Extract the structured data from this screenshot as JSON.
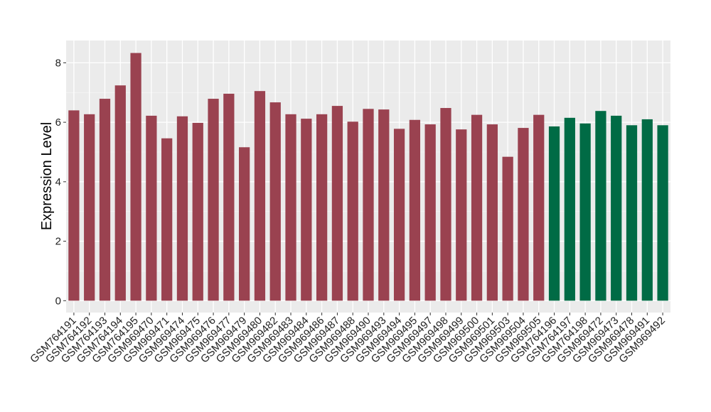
{
  "chart_data": {
    "type": "bar",
    "title": "",
    "xlabel": "",
    "ylabel": "Expression Level",
    "ylim": [
      0,
      8.75
    ],
    "yticks": [
      0,
      2,
      4,
      6,
      8
    ],
    "grid": true,
    "legend": "none",
    "group_colors": {
      "group1": "#9a4250",
      "group2": "#006b45"
    },
    "bars": [
      {
        "label": "GSM764191",
        "value": 6.4,
        "group": "group1"
      },
      {
        "label": "GSM764192",
        "value": 6.27,
        "group": "group1"
      },
      {
        "label": "GSM764193",
        "value": 6.79,
        "group": "group1"
      },
      {
        "label": "GSM764194",
        "value": 7.24,
        "group": "group1"
      },
      {
        "label": "GSM764195",
        "value": 8.33,
        "group": "group1"
      },
      {
        "label": "GSM969470",
        "value": 6.22,
        "group": "group1"
      },
      {
        "label": "GSM969471",
        "value": 5.46,
        "group": "group1"
      },
      {
        "label": "GSM969474",
        "value": 6.2,
        "group": "group1"
      },
      {
        "label": "GSM969475",
        "value": 5.98,
        "group": "group1"
      },
      {
        "label": "GSM969476",
        "value": 6.79,
        "group": "group1"
      },
      {
        "label": "GSM969477",
        "value": 6.96,
        "group": "group1"
      },
      {
        "label": "GSM969479",
        "value": 5.16,
        "group": "group1"
      },
      {
        "label": "GSM969480",
        "value": 7.05,
        "group": "group1"
      },
      {
        "label": "GSM969482",
        "value": 6.67,
        "group": "group1"
      },
      {
        "label": "GSM969483",
        "value": 6.27,
        "group": "group1"
      },
      {
        "label": "GSM969484",
        "value": 6.12,
        "group": "group1"
      },
      {
        "label": "GSM969486",
        "value": 6.27,
        "group": "group1"
      },
      {
        "label": "GSM969487",
        "value": 6.55,
        "group": "group1"
      },
      {
        "label": "GSM969488",
        "value": 6.02,
        "group": "group1"
      },
      {
        "label": "GSM969490",
        "value": 6.45,
        "group": "group1"
      },
      {
        "label": "GSM969493",
        "value": 6.43,
        "group": "group1"
      },
      {
        "label": "GSM969494",
        "value": 5.78,
        "group": "group1"
      },
      {
        "label": "GSM969495",
        "value": 6.08,
        "group": "group1"
      },
      {
        "label": "GSM969497",
        "value": 5.93,
        "group": "group1"
      },
      {
        "label": "GSM969498",
        "value": 6.48,
        "group": "group1"
      },
      {
        "label": "GSM969499",
        "value": 5.76,
        "group": "group1"
      },
      {
        "label": "GSM969500",
        "value": 6.25,
        "group": "group1"
      },
      {
        "label": "GSM969501",
        "value": 5.93,
        "group": "group1"
      },
      {
        "label": "GSM969503",
        "value": 4.84,
        "group": "group1"
      },
      {
        "label": "GSM969504",
        "value": 5.81,
        "group": "group1"
      },
      {
        "label": "GSM969505",
        "value": 6.25,
        "group": "group1"
      },
      {
        "label": "GSM764196",
        "value": 5.86,
        "group": "group2"
      },
      {
        "label": "GSM764197",
        "value": 6.15,
        "group": "group2"
      },
      {
        "label": "GSM764198",
        "value": 5.96,
        "group": "group2"
      },
      {
        "label": "GSM969472",
        "value": 6.38,
        "group": "group2"
      },
      {
        "label": "GSM969473",
        "value": 6.22,
        "group": "group2"
      },
      {
        "label": "GSM969478",
        "value": 5.9,
        "group": "group2"
      },
      {
        "label": "GSM969491",
        "value": 6.1,
        "group": "group2"
      },
      {
        "label": "GSM969492",
        "value": 5.9,
        "group": "group2"
      }
    ]
  }
}
